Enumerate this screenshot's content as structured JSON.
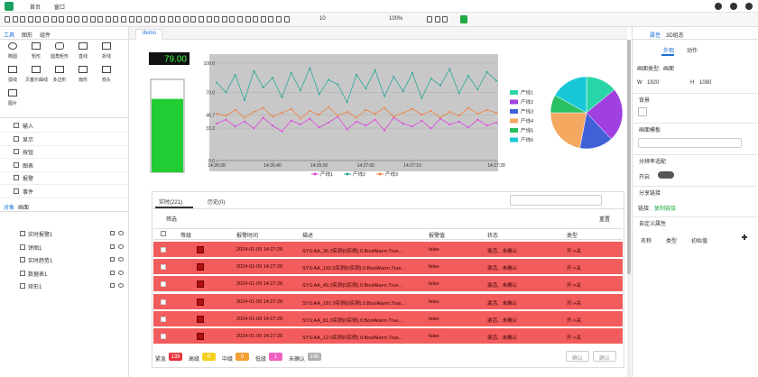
{
  "menu": [
    "首页",
    "窗口"
  ],
  "toolbar": {
    "font_size": "10",
    "zoom": "100%"
  },
  "left_panel": {
    "tabs": [
      "工具",
      "图形",
      "组件"
    ],
    "tools": [
      "椭圆",
      "矩形",
      "圆角矩形",
      "直线",
      "折线",
      "弧线",
      "贝塞尔曲线",
      "多边形",
      "扇形",
      "箭头",
      "图片"
    ],
    "categories": [
      "输入",
      "显示",
      "按钮",
      "图表",
      "报警",
      "事件"
    ],
    "object_tabs": [
      "对象",
      "画面"
    ],
    "objects": [
      "实时报警1",
      "饼图1",
      "实时趋势1",
      "数据表1",
      "矩形1"
    ]
  },
  "canvas_tab": "demo",
  "chart_data": [
    {
      "type": "display",
      "values": [
        79
      ],
      "value_labels": [
        "79.00"
      ],
      "color": "#39ff3c"
    },
    {
      "type": "level",
      "values": [
        79
      ],
      "ylim": [
        0,
        100
      ],
      "color": "#22cc33"
    },
    {
      "type": "line",
      "x": [
        0,
        2,
        4,
        6,
        8,
        10,
        12,
        14,
        16,
        18,
        20,
        22,
        24,
        26,
        28,
        30,
        32,
        34,
        36,
        38,
        40,
        42,
        44,
        46,
        48,
        50,
        52,
        54,
        56,
        58,
        60
      ],
      "xlim": [
        0,
        60
      ],
      "xticks": [
        {
          "value": 0,
          "label": "14:26:28"
        },
        {
          "value": 12,
          "label": "14:26:40"
        },
        {
          "value": 22,
          "label": "14:26:50"
        },
        {
          "value": 32,
          "label": "14:27:00"
        },
        {
          "value": 42,
          "label": "14:27:10"
        },
        {
          "value": 60,
          "label": "14:27:28"
        }
      ],
      "ylim": [
        0,
        100
      ],
      "yticks": [
        {
          "value": 0,
          "label": "0.0"
        },
        33.3,
        46.7,
        {
          "value": 70,
          "label": "70.0"
        },
        {
          "value": 100,
          "label": "100.0"
        }
      ],
      "grid": true,
      "series": [
        {
          "name": "产线1",
          "color": "#e040e0",
          "values": [
            38,
            42,
            35,
            40,
            33,
            44,
            36,
            30,
            41,
            37,
            43,
            34,
            39,
            45,
            32,
            40,
            36,
            42,
            31,
            44,
            38,
            35,
            41,
            33,
            43,
            37,
            40,
            34,
            42,
            36,
            39
          ]
        },
        {
          "name": "产线2",
          "color": "#2aa89a",
          "values": [
            80,
            70,
            88,
            62,
            92,
            75,
            85,
            65,
            90,
            72,
            95,
            68,
            83,
            78,
            60,
            88,
            74,
            93,
            66,
            86,
            71,
            90,
            64,
            84,
            77,
            94,
            69,
            87,
            73,
            91,
            82
          ]
        },
        {
          "name": "产线3",
          "color": "#f08040",
          "values": [
            48,
            46,
            52,
            44,
            50,
            54,
            45,
            49,
            53,
            43,
            51,
            47,
            55,
            46,
            50,
            44,
            52,
            48,
            54,
            45,
            49,
            53,
            47,
            51,
            44,
            50,
            46,
            54,
            48,
            52,
            49
          ]
        }
      ]
    },
    {
      "type": "pie",
      "categories": [
        "产线1",
        "产线2",
        "产线3",
        "产线4",
        "产线5",
        "产线6"
      ],
      "values": [
        14,
        24,
        15,
        22,
        8,
        17
      ],
      "colors": [
        "#2ad6a8",
        "#a040e0",
        "#4060d8",
        "#f5a860",
        "#28c060",
        "#18c8d8"
      ]
    }
  ],
  "alarm_panel": {
    "tabs": [
      "实时(221)",
      "历史(0)"
    ],
    "filter": "筛选",
    "reset": "重置",
    "headers": [
      "等级",
      "报警时间",
      "描述",
      "报警值",
      "状态",
      "类型"
    ],
    "rows": [
      [
        "2024-01-09 14:27:28",
        "SYS:AA_36.0实例(0实例).0.BoolAlarm.True...",
        "false",
        "激活、未确认",
        "开->关"
      ],
      [
        "2024-01-09 14:27:28",
        "SYS:AA_192.0实例(0实例).0.BoolAlarm.True...",
        "false",
        "激活、未确认",
        "开->关"
      ],
      [
        "2024-01-09 14:27:28",
        "SYS:AA_45.0实例(0实例).0.BoolAlarm.True...",
        "false",
        "激活、未确认",
        "开->关"
      ],
      [
        "2024-01-09 14:27:28",
        "SYS:AA_187.0实例(0实例).0.BoolAlarm.True...",
        "false",
        "激活、未确认",
        "开->关"
      ],
      [
        "2024-01-09 14:27:28",
        "SYS:AA_81.0实例(0实例).0.BoolAlarm.True...",
        "false",
        "激活、未确认",
        "开->关"
      ],
      [
        "2024-01-09 14:27:28",
        "SYS:AA_12.0实例(0实例).0.BoolAlarm.True...",
        "false",
        "激活、未确认",
        "开->关"
      ]
    ],
    "footer": [
      {
        "label": "紧急",
        "count": 139,
        "color": "#e8323c"
      },
      {
        "label": "高级",
        "count": 0,
        "color": "#f5d020"
      },
      {
        "label": "中级",
        "count": 0,
        "color": "#f5a030"
      },
      {
        "label": "低级",
        "count": 1,
        "color": "#f060c0"
      },
      {
        "label": "未确认",
        "count": 140,
        "color": "#b0b0b0"
      }
    ],
    "buttons": [
      "确认",
      "确认"
    ]
  },
  "right_panel": {
    "tabs": [
      "属性",
      "3D组态"
    ],
    "subtabs": [
      "外观",
      "动作"
    ],
    "screen_type_label": "画面类型:",
    "screen_type": "画面",
    "w_label": "W",
    "w": 1920,
    "h_label": "H",
    "h": 1080,
    "sections": [
      "背景",
      "画面模板",
      "分辨率适配",
      "分享链接",
      "自定义属性"
    ],
    "enable": "开启",
    "link_label": "链接:",
    "link": "复制链接",
    "columns": [
      "名称",
      "类型",
      "初始值"
    ]
  }
}
